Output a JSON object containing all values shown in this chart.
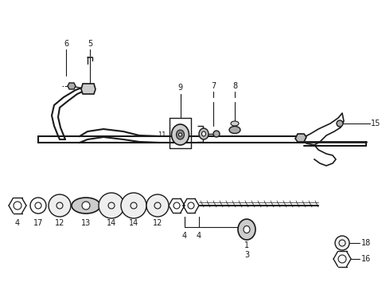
{
  "background_color": "#ffffff",
  "line_color": "#1a1a1a",
  "label_color": "#1a1a1a",
  "figsize": [
    4.8,
    3.69
  ],
  "dpi": 100
}
